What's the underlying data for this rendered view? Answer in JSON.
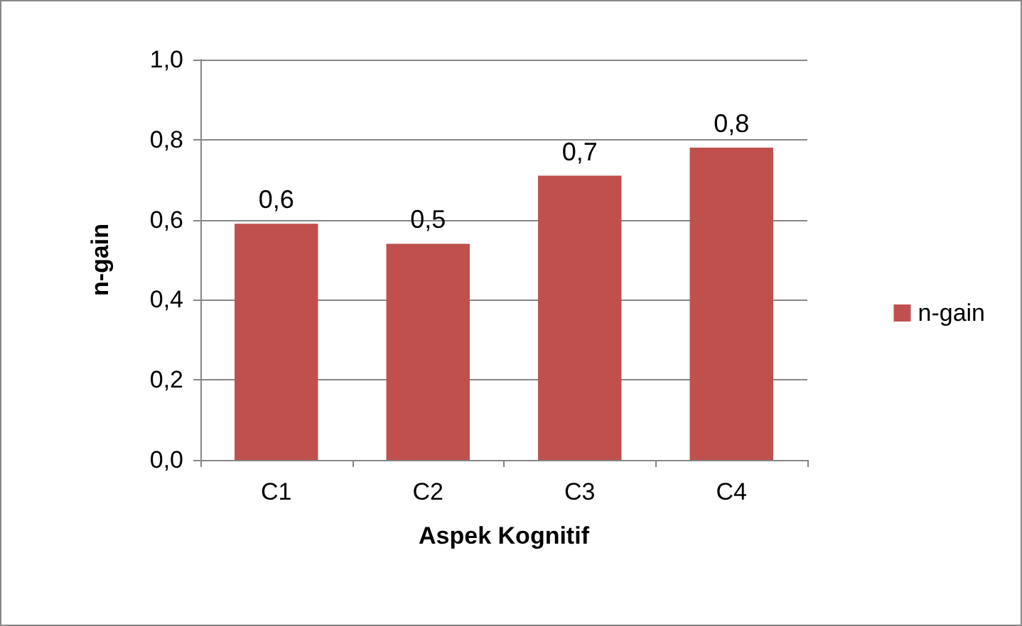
{
  "chart_data": {
    "type": "bar",
    "xlabel": "Aspek Kognitif",
    "ylabel": "n-gain",
    "categories": [
      "C1",
      "C2",
      "C3",
      "C4"
    ],
    "series": [
      {
        "name": "n-gain",
        "color": "#c0504d",
        "values": [
          0.59,
          0.54,
          0.71,
          0.78
        ],
        "value_labels": [
          "0,6",
          "0,5",
          "0,7",
          "0,8"
        ]
      }
    ],
    "ylim": [
      0,
      1
    ],
    "yticks": [
      {
        "value": 0,
        "label": "0,0"
      },
      {
        "value": 0.2,
        "label": "0,2"
      },
      {
        "value": 0.4,
        "label": "0,4"
      },
      {
        "value": 0.6,
        "label": "0,6"
      },
      {
        "value": 0.8,
        "label": "0,8"
      },
      {
        "value": 1,
        "label": "1,0"
      }
    ],
    "grid": "y",
    "legend": "right"
  }
}
